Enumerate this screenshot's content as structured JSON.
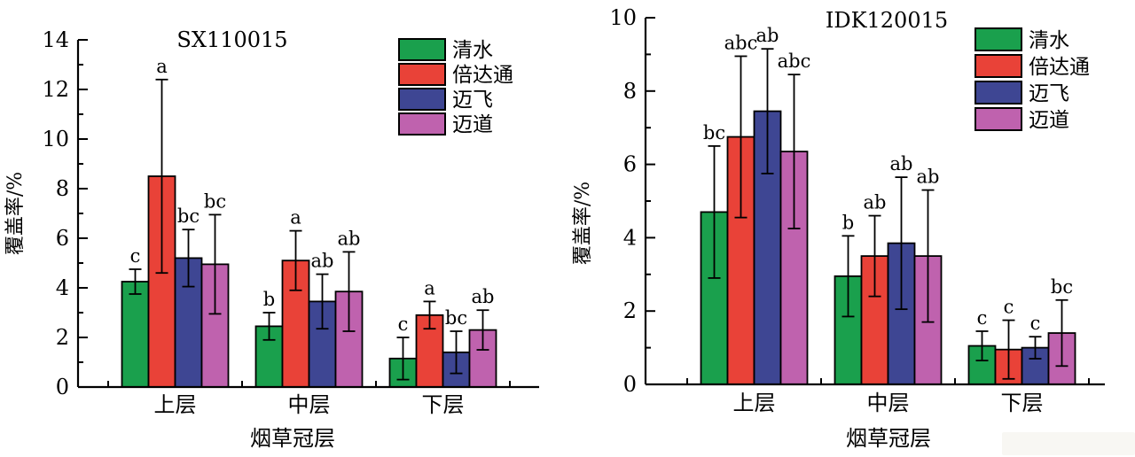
{
  "figure": {
    "background": "#ffffff",
    "description_labels": {
      "y_axis_label": "覆盖率/%",
      "x_axis_label": "烟草冠层"
    }
  },
  "chart_data": [
    {
      "type": "bar",
      "title": "SX110015",
      "ylabel": "覆盖率/%",
      "xlabel": "烟草冠层",
      "ylim": [
        0,
        14
      ],
      "ytick_step": 2,
      "minor_ticks": true,
      "grid": false,
      "legend_position": "top-right-inside",
      "categories": [
        "上层",
        "中层",
        "下层"
      ],
      "series": [
        {
          "name": "清水",
          "color": "#1AA04D",
          "values": [
            4.25,
            2.45,
            1.15
          ],
          "errors": [
            0.5,
            0.55,
            0.85
          ],
          "sig_letters": [
            "c",
            "b",
            "c"
          ]
        },
        {
          "name": "倍达通",
          "color": "#E94238",
          "values": [
            8.5,
            5.1,
            2.9
          ],
          "errors": [
            3.9,
            1.2,
            0.55
          ],
          "sig_letters": [
            "a",
            "a",
            "a"
          ]
        },
        {
          "name": "迈飞",
          "color": "#3E4693",
          "values": [
            5.2,
            3.45,
            1.4
          ],
          "errors": [
            1.15,
            1.1,
            0.85
          ],
          "sig_letters": [
            "bc",
            "ab",
            "bc"
          ]
        },
        {
          "name": "迈道",
          "color": "#BF62AE",
          "values": [
            4.95,
            3.85,
            2.3
          ],
          "errors": [
            2.0,
            1.6,
            0.8
          ],
          "sig_letters": [
            "bc",
            "ab",
            "ab"
          ]
        }
      ]
    },
    {
      "type": "bar",
      "title": "IDK120015",
      "ylabel": "覆盖率/%",
      "xlabel": "烟草冠层",
      "ylim": [
        0,
        10
      ],
      "ytick_step": 2,
      "minor_ticks": true,
      "grid": false,
      "legend_position": "top-right-inside",
      "categories": [
        "上层",
        "中层",
        "下层"
      ],
      "series": [
        {
          "name": "清水",
          "color": "#1AA04D",
          "values": [
            4.7,
            2.95,
            1.05
          ],
          "errors": [
            1.8,
            1.1,
            0.4
          ],
          "sig_letters": [
            "bc",
            "b",
            "c"
          ]
        },
        {
          "name": "倍达通",
          "color": "#E94238",
          "values": [
            6.75,
            3.5,
            0.95
          ],
          "errors": [
            2.2,
            1.1,
            0.8
          ],
          "sig_letters": [
            "abc",
            "ab",
            "c"
          ]
        },
        {
          "name": "迈飞",
          "color": "#3E4693",
          "values": [
            7.45,
            3.85,
            1.0
          ],
          "errors": [
            1.7,
            1.8,
            0.3
          ],
          "sig_letters": [
            "ab",
            "ab",
            "c"
          ]
        },
        {
          "name": "迈道",
          "color": "#BF62AE",
          "values": [
            6.35,
            3.5,
            1.4
          ],
          "errors": [
            2.1,
            1.8,
            0.9
          ],
          "sig_letters": [
            "abc",
            "ab",
            "bc"
          ]
        }
      ]
    }
  ]
}
